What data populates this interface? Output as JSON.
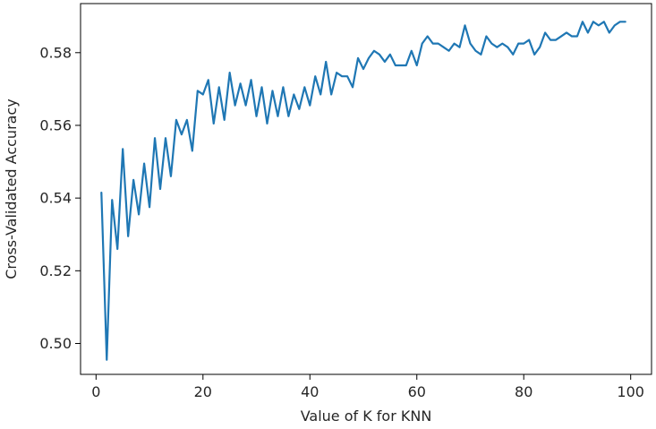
{
  "chart_data": {
    "type": "line",
    "title": "",
    "xlabel": "Value of K for KNN",
    "ylabel": "Cross-Validated Accuracy",
    "xlim": [
      -2.9,
      103.9
    ],
    "ylim": [
      0.4915,
      0.5935
    ],
    "xticks": [
      0,
      20,
      40,
      60,
      80,
      100
    ],
    "yticks": [
      0.5,
      0.52,
      0.54,
      0.56,
      0.58
    ],
    "xtick_labels": [
      "0",
      "20",
      "40",
      "60",
      "80",
      "100"
    ],
    "ytick_labels": [
      "0.50",
      "0.52",
      "0.54",
      "0.56",
      "0.58"
    ],
    "grid": false,
    "series": [
      {
        "name": "",
        "color": "#1f77b4",
        "x": [
          1,
          2,
          3,
          4,
          5,
          6,
          7,
          8,
          9,
          10,
          11,
          12,
          13,
          14,
          15,
          16,
          17,
          18,
          19,
          20,
          21,
          22,
          23,
          24,
          25,
          26,
          27,
          28,
          29,
          30,
          31,
          32,
          33,
          34,
          35,
          36,
          37,
          38,
          39,
          40,
          41,
          42,
          43,
          44,
          45,
          46,
          47,
          48,
          49,
          50,
          51,
          52,
          53,
          54,
          55,
          56,
          57,
          58,
          59,
          60,
          61,
          62,
          63,
          64,
          65,
          66,
          67,
          68,
          69,
          70,
          71,
          72,
          73,
          74,
          75,
          76,
          77,
          78,
          79,
          80,
          81,
          82,
          83,
          84,
          85,
          86,
          87,
          88,
          89,
          90,
          91,
          92,
          93,
          94,
          95,
          96,
          97,
          98,
          99
        ],
        "y": [
          0.5415,
          0.4955,
          0.5395,
          0.526,
          0.5535,
          0.5295,
          0.545,
          0.5355,
          0.5495,
          0.5375,
          0.5565,
          0.5425,
          0.5565,
          0.546,
          0.5615,
          0.5575,
          0.5615,
          0.553,
          0.5695,
          0.5685,
          0.5725,
          0.5605,
          0.5705,
          0.5615,
          0.5745,
          0.5655,
          0.5715,
          0.5655,
          0.5725,
          0.5625,
          0.5705,
          0.5605,
          0.5695,
          0.5625,
          0.5705,
          0.5625,
          0.5685,
          0.5645,
          0.5705,
          0.5655,
          0.5735,
          0.5685,
          0.5775,
          0.5685,
          0.5745,
          0.5735,
          0.5735,
          0.5705,
          0.5785,
          0.5755,
          0.5785,
          0.5805,
          0.5795,
          0.5775,
          0.5795,
          0.5765,
          0.5765,
          0.5765,
          0.5805,
          0.5765,
          0.5825,
          0.5845,
          0.5825,
          0.5825,
          0.5815,
          0.5805,
          0.5825,
          0.5815,
          0.5875,
          0.5825,
          0.5805,
          0.5795,
          0.5845,
          0.5825,
          0.5815,
          0.5825,
          0.5815,
          0.5795,
          0.5825,
          0.5825,
          0.5835,
          0.5795,
          0.5815,
          0.5855,
          0.5835,
          0.5835,
          0.5845,
          0.5855,
          0.5845,
          0.5845,
          0.5885,
          0.5855,
          0.5885,
          0.5875,
          0.5885,
          0.5855,
          0.5875,
          0.5885,
          0.5885
        ]
      }
    ]
  }
}
